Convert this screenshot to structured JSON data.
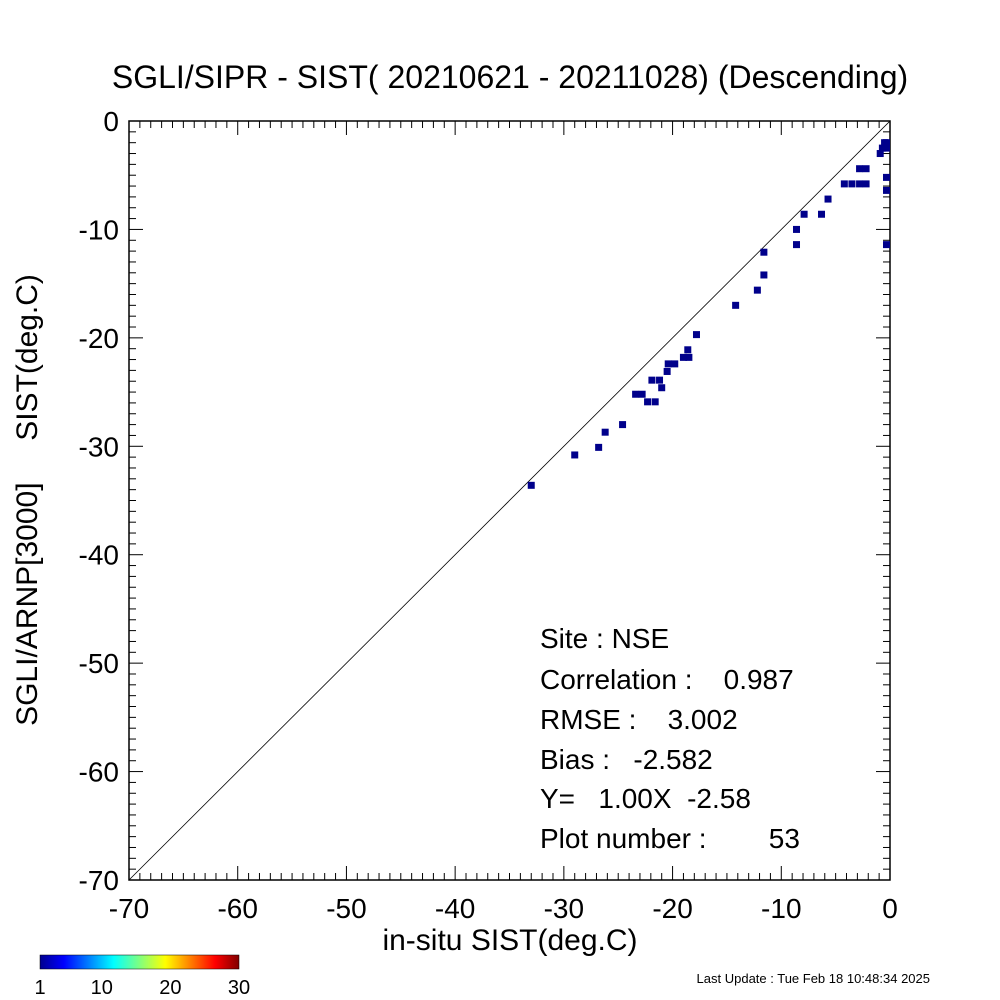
{
  "chart_data": {
    "type": "scatter",
    "title": "SGLI/SIPR - SIST( 20210621 - 20211028) (Descending)",
    "xlabel": "in-situ SIST(deg.C)",
    "ylabel": "SGLI/ARNP[3000]     SIST(deg.C)",
    "xlim": [
      -70,
      0
    ],
    "ylim": [
      -70,
      0
    ],
    "x_ticks": [
      -70,
      -60,
      -50,
      -40,
      -30,
      -20,
      -10,
      0
    ],
    "y_ticks": [
      -70,
      -60,
      -50,
      -40,
      -30,
      -20,
      -10,
      0
    ],
    "x_tick_labels": [
      "-70",
      "-60",
      "-50",
      "-40",
      "-30",
      "-20",
      "-10",
      "0"
    ],
    "y_tick_labels": [
      "-70",
      "-60",
      "-50",
      "-40",
      "-30",
      "-20",
      "-10",
      "0"
    ],
    "reference_line": "y = x",
    "marker_color": "#00008b",
    "points": [
      {
        "x": -33.0,
        "y": -33.6
      },
      {
        "x": -29.0,
        "y": -30.8
      },
      {
        "x": -26.8,
        "y": -30.1
      },
      {
        "x": -26.2,
        "y": -28.7
      },
      {
        "x": -24.6,
        "y": -28.0
      },
      {
        "x": -23.4,
        "y": -25.2
      },
      {
        "x": -22.8,
        "y": -25.2
      },
      {
        "x": -22.3,
        "y": -25.9
      },
      {
        "x": -21.6,
        "y": -25.9
      },
      {
        "x": -21.9,
        "y": -23.9
      },
      {
        "x": -21.2,
        "y": -23.9
      },
      {
        "x": -21.0,
        "y": -24.6
      },
      {
        "x": -20.5,
        "y": -23.1
      },
      {
        "x": -20.4,
        "y": -22.4
      },
      {
        "x": -19.8,
        "y": -22.4
      },
      {
        "x": -19.0,
        "y": -21.8
      },
      {
        "x": -18.5,
        "y": -21.8
      },
      {
        "x": -18.6,
        "y": -21.1
      },
      {
        "x": -17.8,
        "y": -19.7
      },
      {
        "x": -14.2,
        "y": -17.0
      },
      {
        "x": -12.2,
        "y": -15.6
      },
      {
        "x": -11.6,
        "y": -14.2
      },
      {
        "x": -11.6,
        "y": -12.1
      },
      {
        "x": -8.6,
        "y": -11.4
      },
      {
        "x": -8.6,
        "y": -10.0
      },
      {
        "x": -7.9,
        "y": -8.6
      },
      {
        "x": -6.3,
        "y": -8.6
      },
      {
        "x": -5.7,
        "y": -7.2
      },
      {
        "x": -4.2,
        "y": -5.8
      },
      {
        "x": -3.5,
        "y": -5.8
      },
      {
        "x": -2.8,
        "y": -5.8
      },
      {
        "x": -2.2,
        "y": -5.8
      },
      {
        "x": -2.8,
        "y": -4.4
      },
      {
        "x": -2.2,
        "y": -4.4
      },
      {
        "x": -0.9,
        "y": -3.0
      },
      {
        "x": -0.7,
        "y": -2.5
      },
      {
        "x": -0.5,
        "y": -2.0
      },
      {
        "x": -0.3,
        "y": -2.5
      },
      {
        "x": -0.1,
        "y": -2.0
      },
      {
        "x": -0.1,
        "y": -5.2
      },
      {
        "x": -0.1,
        "y": -6.4
      },
      {
        "x": -0.1,
        "y": -11.4
      }
    ],
    "stats": {
      "site": "Site : NSE",
      "correlation": "Correlation :    0.987",
      "rmse": "RMSE :    3.002",
      "bias": "Bias :   -2.582",
      "regression": "Y=   1.00X  -2.58",
      "plot_number": "Plot number :        53"
    },
    "colorbar": {
      "colormap": "jet",
      "range": [
        1,
        30
      ],
      "ticks": [
        1,
        10,
        20,
        30
      ],
      "tick_labels": [
        "1",
        "10",
        "20",
        "30"
      ]
    }
  },
  "footer": {
    "last_update": "Last Update : Tue Feb 18 10:48:34 2025"
  }
}
